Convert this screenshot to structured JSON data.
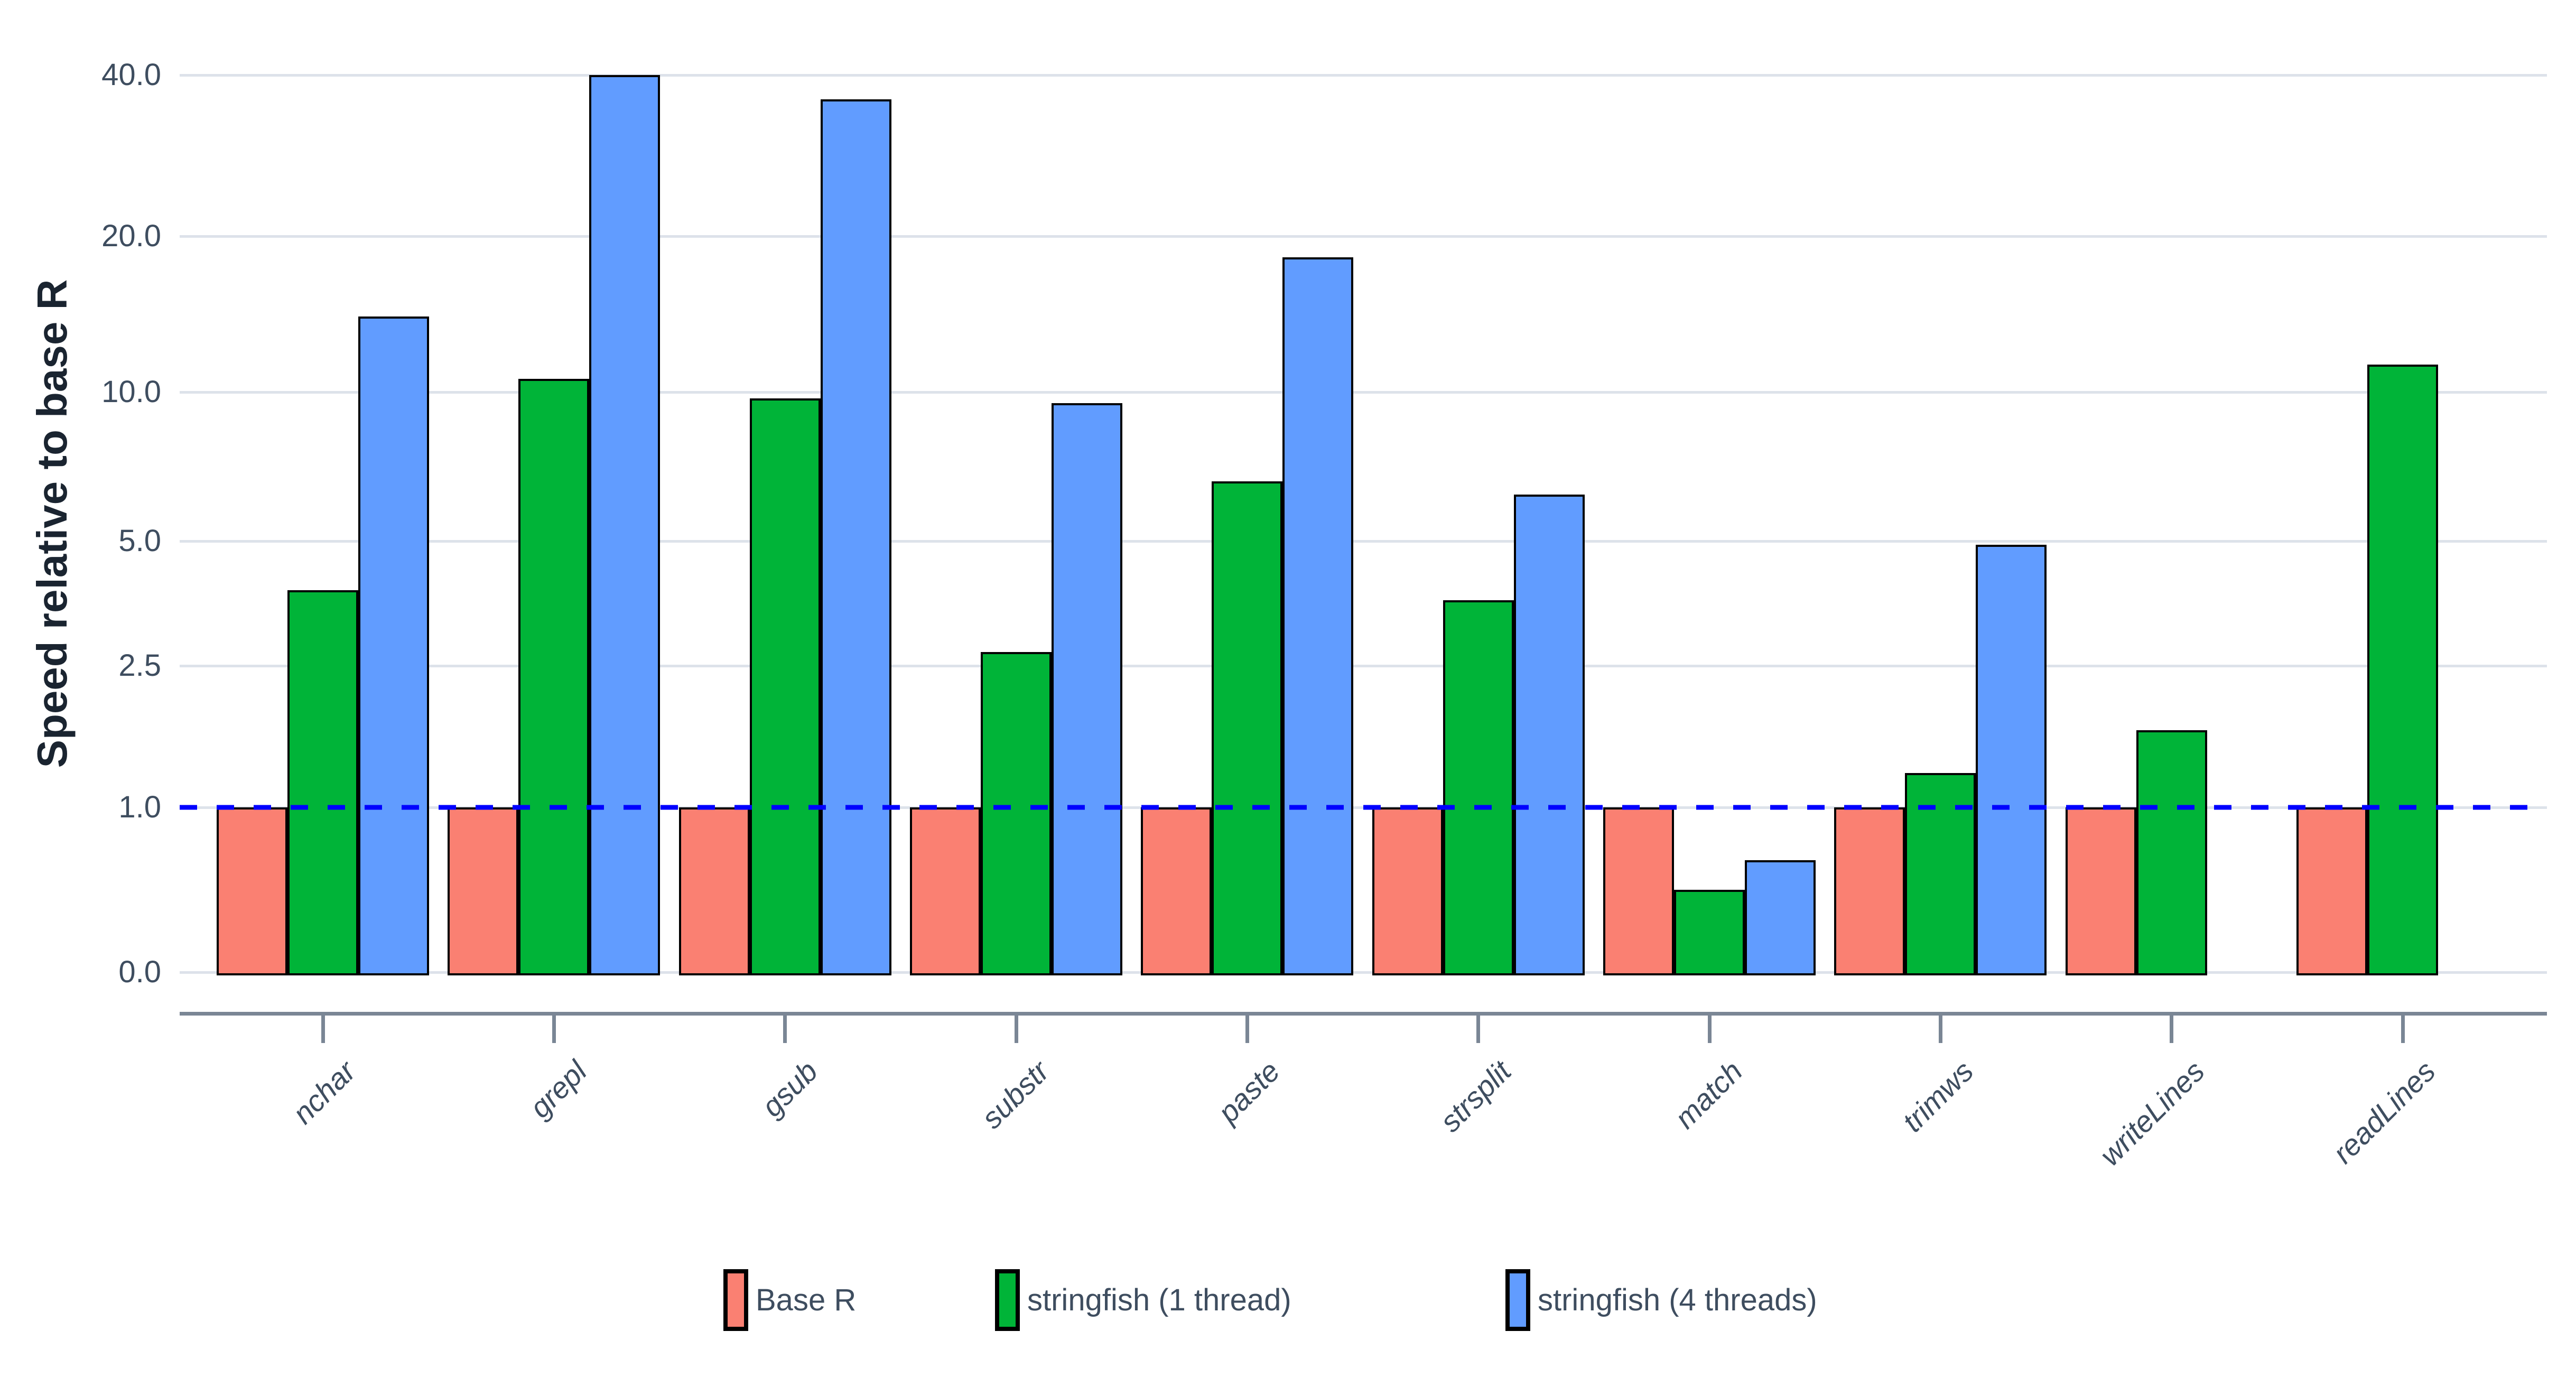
{
  "figure": {
    "background": "#FFFFFF"
  },
  "y_axis": {
    "title": "Speed relative to base R",
    "tick_labels": [
      "40.0",
      "20.0",
      "10.0",
      "5.0",
      "2.5",
      "1.0",
      "0.0"
    ]
  },
  "x_axis": {
    "categories": [
      "nchar",
      "grepl",
      "gsub",
      "substr",
      "paste",
      "strsplit",
      "match",
      "trimws",
      "writeLines",
      "readLines"
    ]
  },
  "legend": {
    "labels": [
      "Base R",
      "stringfish (1 thread)",
      "stringfish (4 threads)"
    ]
  },
  "colors": {
    "base_r": "#FA8072",
    "one_thread": "#00B438",
    "four_threads": "#619CFF",
    "baseline": "#0000FF",
    "bar_outline": "#000000",
    "gridline": "#DDE2EA",
    "axis_line": "#7A8695",
    "tick_text": "#3E4D5F",
    "title_text": "#1A2430"
  },
  "chart_data": {
    "type": "bar",
    "title": "",
    "xlabel": "",
    "ylabel": "Speed relative to base R",
    "categories": [
      "nchar",
      "grepl",
      "gsub",
      "substr",
      "paste",
      "strsplit",
      "match",
      "trimws",
      "writeLines",
      "readLines"
    ],
    "series": [
      {
        "name": "Base R",
        "color": "#FA8072",
        "values": [
          1.0,
          1.0,
          1.0,
          1.0,
          1.0,
          1.0,
          1.0,
          1.0,
          1.0,
          1.0
        ]
      },
      {
        "name": "stringfish (1 thread)",
        "color": "#00B438",
        "values": [
          3.8,
          10.6,
          9.7,
          2.7,
          6.6,
          3.6,
          0.5,
          1.25,
          1.65,
          11.3
        ]
      },
      {
        "name": "stringfish (4 threads)",
        "color": "#619CFF",
        "values": [
          14.0,
          40.0,
          36.0,
          9.5,
          18.2,
          6.2,
          0.68,
          4.9,
          null,
          null
        ]
      }
    ],
    "y_scale": "pseudo-log",
    "y_ticks": [
      0,
      1.0,
      2.5,
      5.0,
      10.0,
      20.0,
      40.0
    ],
    "y_tick_labels": [
      "0.0",
      "1.0",
      "2.5",
      "5.0",
      "10.0",
      "20.0",
      "40.0"
    ],
    "ylim": [
      0,
      40
    ],
    "grid": "horizontal",
    "legend_position": "bottom",
    "reference_line": {
      "y": 1.0,
      "color": "#0000FF",
      "style": "dashed"
    }
  }
}
